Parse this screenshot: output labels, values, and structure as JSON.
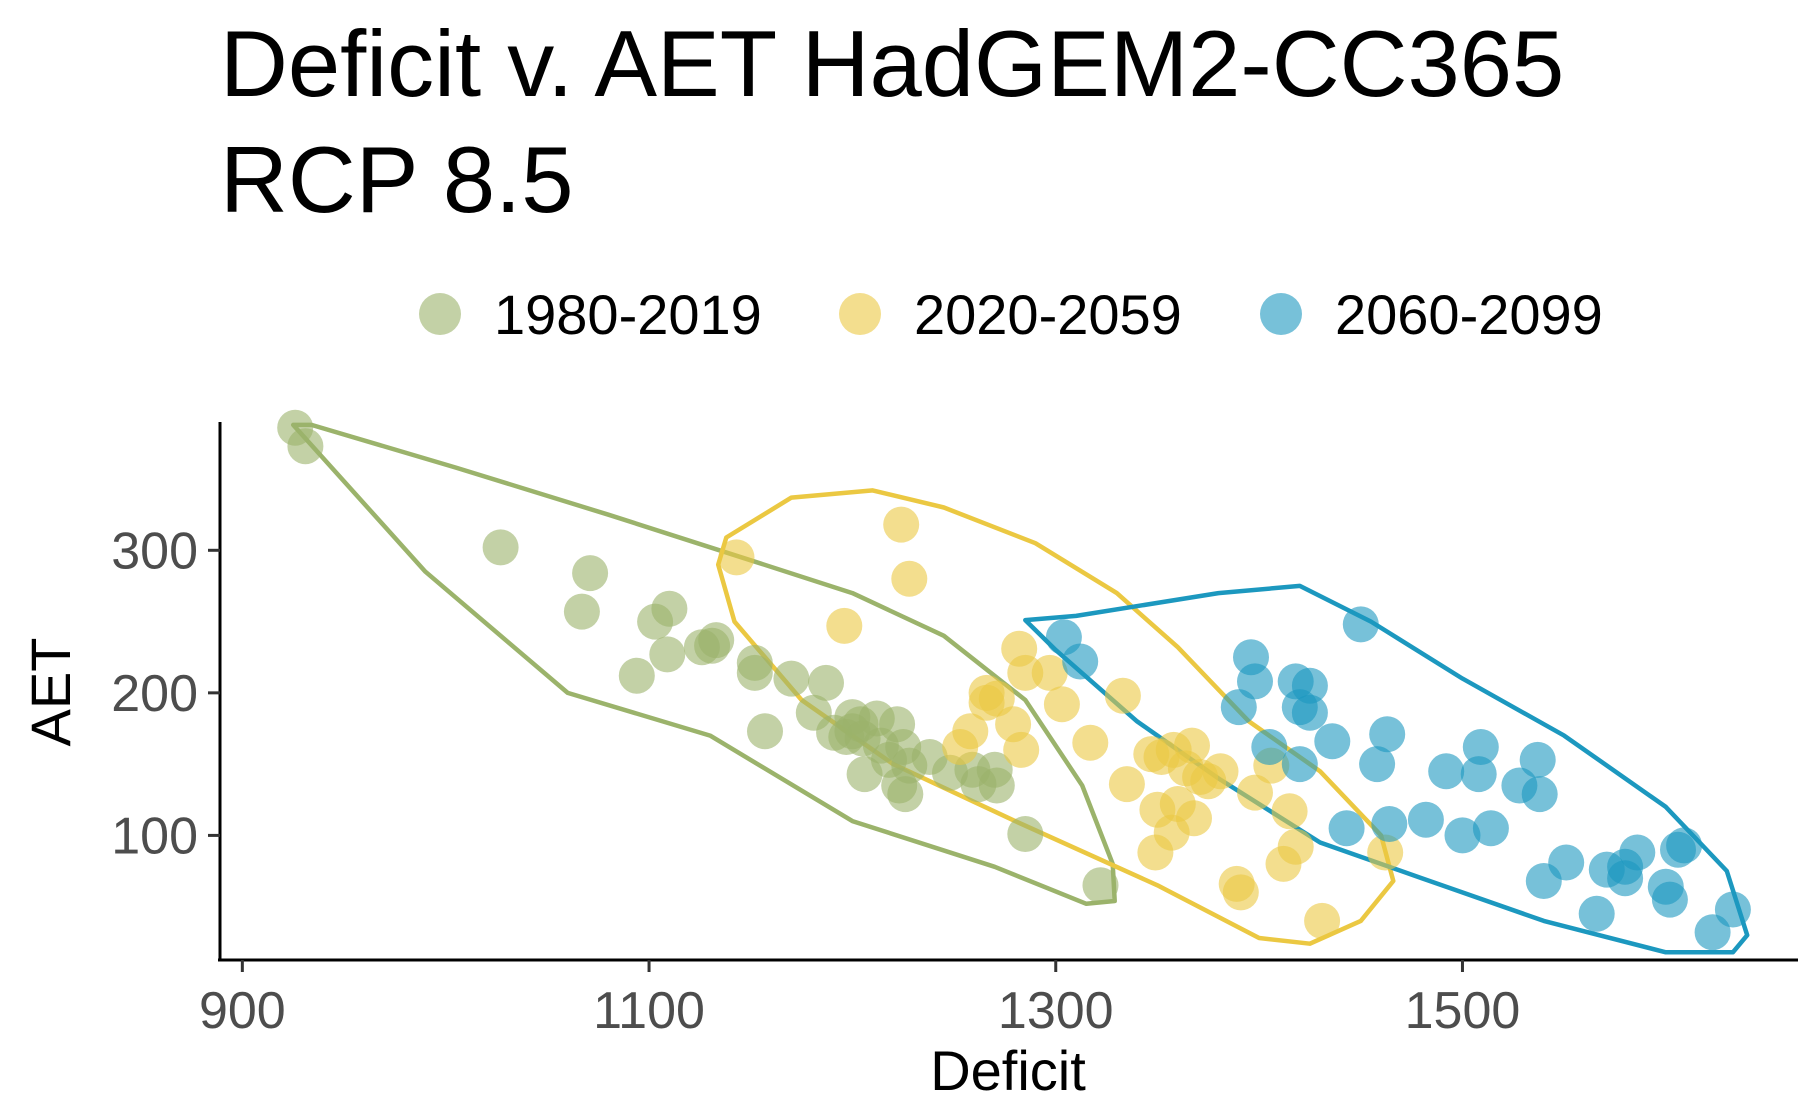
{
  "chart_data": {
    "type": "scatter",
    "title_line1": "Deficit v. AET HadGEM2-CC365",
    "title_line2": "RCP 8.5",
    "xlabel": "Deficit",
    "ylabel": "AET",
    "xlim": [
      890,
      1665
    ],
    "ylim": [
      14,
      390
    ],
    "xticks": [
      900,
      1100,
      1300,
      1500
    ],
    "yticks": [
      100,
      200,
      300
    ],
    "xtick_labels": [
      "900",
      "1100",
      "1300",
      "1500"
    ],
    "ytick_labels": [
      "100",
      "200",
      "300"
    ],
    "grid": false,
    "legend_position": "top",
    "series": [
      {
        "name": "1980-2019",
        "color": "#9bb36b",
        "points": [
          [
            926,
            386
          ],
          [
            931,
            373
          ],
          [
            1027,
            302
          ],
          [
            1071,
            284
          ],
          [
            1067,
            257
          ],
          [
            1103,
            250
          ],
          [
            1110,
            259
          ],
          [
            1094,
            212
          ],
          [
            1109,
            227
          ],
          [
            1126,
            232
          ],
          [
            1133,
            237
          ],
          [
            1131,
            233
          ],
          [
            1152,
            221
          ],
          [
            1152,
            214
          ],
          [
            1170,
            210
          ],
          [
            1187,
            207
          ],
          [
            1181,
            186
          ],
          [
            1191,
            172
          ],
          [
            1200,
            183
          ],
          [
            1204,
            178
          ],
          [
            1200,
            173
          ],
          [
            1212,
            182
          ],
          [
            1222,
            178
          ],
          [
            1197,
            169
          ],
          [
            1205,
            168
          ],
          [
            1214,
            163
          ],
          [
            1225,
            162
          ],
          [
            1218,
            153
          ],
          [
            1228,
            149
          ],
          [
            1238,
            155
          ],
          [
            1206,
            143
          ],
          [
            1223,
            135
          ],
          [
            1226,
            129
          ],
          [
            1248,
            144
          ],
          [
            1259,
            146
          ],
          [
            1262,
            136
          ],
          [
            1270,
            146
          ],
          [
            1271,
            135
          ],
          [
            1157,
            173
          ],
          [
            1285,
            101
          ],
          [
            1322,
            65
          ]
        ],
        "hull": [
          [
            934,
            388
          ],
          [
            1005,
            358
          ],
          [
            1080,
            325
          ],
          [
            1150,
            293
          ],
          [
            1200,
            270
          ],
          [
            1245,
            240
          ],
          [
            1285,
            195
          ],
          [
            1313,
            135
          ],
          [
            1328,
            80
          ],
          [
            1329,
            54
          ],
          [
            1315,
            52
          ],
          [
            1270,
            78
          ],
          [
            1200,
            110
          ],
          [
            1130,
            170
          ],
          [
            1060,
            200
          ],
          [
            990,
            285
          ],
          [
            925,
            388
          ]
        ]
      },
      {
        "name": "2020-2059",
        "color": "#ebc842",
        "points": [
          [
            1143,
            295
          ],
          [
            1224,
            318
          ],
          [
            1228,
            280
          ],
          [
            1196,
            247
          ],
          [
            1266,
            200
          ],
          [
            1266,
            193
          ],
          [
            1271,
            196
          ],
          [
            1282,
            231
          ],
          [
            1285,
            214
          ],
          [
            1297,
            214
          ],
          [
            1303,
            192
          ],
          [
            1317,
            165
          ],
          [
            1333,
            198
          ],
          [
            1279,
            178
          ],
          [
            1283,
            160
          ],
          [
            1258,
            173
          ],
          [
            1253,
            162
          ],
          [
            1347,
            157
          ],
          [
            1352,
            155
          ],
          [
            1358,
            160
          ],
          [
            1367,
            163
          ],
          [
            1371,
            141
          ],
          [
            1381,
            145
          ],
          [
            1364,
            147
          ],
          [
            1335,
            136
          ],
          [
            1350,
            118
          ],
          [
            1360,
            122
          ],
          [
            1357,
            102
          ],
          [
            1368,
            112
          ],
          [
            1349,
            88
          ],
          [
            1375,
            138
          ],
          [
            1389,
            66
          ],
          [
            1391,
            60
          ],
          [
            1398,
            130
          ],
          [
            1406,
            149
          ],
          [
            1415,
            117
          ],
          [
            1418,
            92
          ],
          [
            1412,
            80
          ],
          [
            1431,
            40
          ],
          [
            1462,
            88
          ]
        ],
        "hull": [
          [
            1138,
            309
          ],
          [
            1170,
            337
          ],
          [
            1210,
            342
          ],
          [
            1245,
            330
          ],
          [
            1290,
            305
          ],
          [
            1330,
            270
          ],
          [
            1360,
            232
          ],
          [
            1395,
            180
          ],
          [
            1430,
            145
          ],
          [
            1460,
            100
          ],
          [
            1466,
            68
          ],
          [
            1450,
            40
          ],
          [
            1425,
            24
          ],
          [
            1400,
            28
          ],
          [
            1350,
            65
          ],
          [
            1280,
            110
          ],
          [
            1220,
            150
          ],
          [
            1175,
            195
          ],
          [
            1142,
            250
          ],
          [
            1134,
            290
          ]
        ]
      },
      {
        "name": "2060-2099",
        "color": "#1c98bf",
        "points": [
          [
            1304,
            239
          ],
          [
            1312,
            222
          ],
          [
            1390,
            190
          ],
          [
            1396,
            225
          ],
          [
            1398,
            208
          ],
          [
            1405,
            162
          ],
          [
            1418,
            208
          ],
          [
            1420,
            190
          ],
          [
            1425,
            205
          ],
          [
            1425,
            186
          ],
          [
            1420,
            150
          ],
          [
            1436,
            166
          ],
          [
            1450,
            248
          ],
          [
            1458,
            150
          ],
          [
            1463,
            171
          ],
          [
            1443,
            105
          ],
          [
            1464,
            108
          ],
          [
            1482,
            111
          ],
          [
            1492,
            145
          ],
          [
            1500,
            100
          ],
          [
            1508,
            143
          ],
          [
            1509,
            162
          ],
          [
            1514,
            105
          ],
          [
            1528,
            135
          ],
          [
            1537,
            153
          ],
          [
            1538,
            129
          ],
          [
            1540,
            68
          ],
          [
            1551,
            81
          ],
          [
            1566,
            45
          ],
          [
            1571,
            76
          ],
          [
            1580,
            70
          ],
          [
            1580,
            78
          ],
          [
            1586,
            88
          ],
          [
            1600,
            64
          ],
          [
            1602,
            55
          ],
          [
            1606,
            90
          ],
          [
            1609,
            93
          ],
          [
            1623,
            32
          ],
          [
            1633,
            48
          ]
        ],
        "hull": [
          [
            1285,
            251
          ],
          [
            1310,
            254
          ],
          [
            1380,
            270
          ],
          [
            1420,
            275
          ],
          [
            1455,
            250
          ],
          [
            1500,
            210
          ],
          [
            1550,
            170
          ],
          [
            1600,
            120
          ],
          [
            1630,
            75
          ],
          [
            1640,
            30
          ],
          [
            1633,
            18
          ],
          [
            1600,
            18
          ],
          [
            1540,
            40
          ],
          [
            1480,
            70
          ],
          [
            1430,
            95
          ],
          [
            1380,
            140
          ],
          [
            1340,
            180
          ],
          [
            1300,
            230
          ]
        ]
      }
    ]
  }
}
